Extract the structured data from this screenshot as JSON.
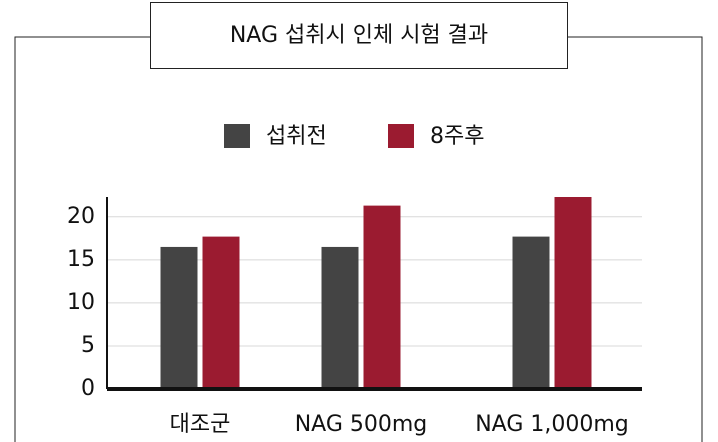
{
  "chart_data": {
    "type": "bar",
    "title": "NAG 섭취시 인체 시험 결과",
    "categories": [
      "대조군",
      "NAG 500mg",
      "NAG 1,000mg"
    ],
    "series": [
      {
        "name": "섭취전",
        "color": "#444444",
        "values": [
          16.5,
          16.5,
          17.7
        ]
      },
      {
        "name": "8주후",
        "color": "#9b1b30",
        "values": [
          17.7,
          21.3,
          22.3
        ]
      }
    ],
    "ylim": [
      0,
      22.3
    ],
    "yticks": [
      0,
      5,
      10,
      15,
      20
    ],
    "grid": true
  }
}
